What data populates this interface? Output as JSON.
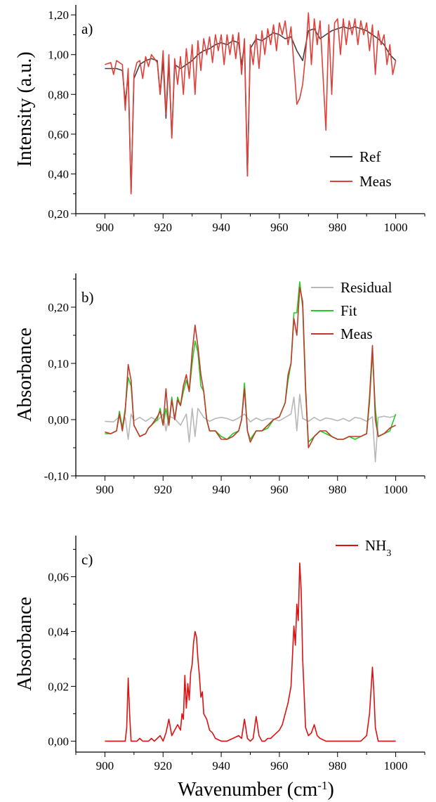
{
  "chart_data": [
    {
      "id": "a",
      "type": "line",
      "panel_label": "a)",
      "xlabel": "",
      "ylabel": "Intensity (a.u.)",
      "xlim": [
        890,
        1010
      ],
      "ylim": [
        0.2,
        1.25
      ],
      "x_ticks": [
        900,
        920,
        940,
        960,
        980,
        1000
      ],
      "x_tick_labels": [
        "900",
        "920",
        "940",
        "960",
        "980",
        "1000"
      ],
      "y_ticks": [
        0.2,
        0.4,
        0.6,
        0.8,
        1.0,
        1.2
      ],
      "y_tick_labels": [
        "0,20",
        "0,40",
        "0,60",
        "0,80",
        "1,00",
        "1,20"
      ],
      "legend_position": "bottom-right",
      "series": [
        {
          "name": "Ref",
          "color": "#404040",
          "x": [
            900,
            904,
            906,
            907,
            908,
            909,
            910,
            912,
            914,
            916,
            918,
            919,
            920,
            921,
            922,
            923,
            924,
            926,
            928,
            930,
            932,
            934,
            936,
            938,
            940,
            942,
            944,
            946,
            947,
            948,
            949,
            950,
            952,
            954,
            956,
            958,
            960,
            962,
            964,
            966,
            968,
            970,
            972,
            974,
            976,
            978,
            980,
            982,
            984,
            986,
            988,
            990,
            992,
            994,
            996,
            998,
            1000
          ],
          "y": [
            0.93,
            0.93,
            0.92,
            0.76,
            0.9,
            0.3,
            0.88,
            0.95,
            0.97,
            0.98,
            0.97,
            0.8,
            0.97,
            0.68,
            0.96,
            0.58,
            0.95,
            0.93,
            0.95,
            0.97,
            1.0,
            1.02,
            1.03,
            1.05,
            1.06,
            1.05,
            1.07,
            1.06,
            0.95,
            1.05,
            0.39,
            1.03,
            1.08,
            1.07,
            1.09,
            1.11,
            1.1,
            1.08,
            1.09,
            1.02,
            0.97,
            1.12,
            1.13,
            1.08,
            1.1,
            1.12,
            1.13,
            1.14,
            1.13,
            1.14,
            1.13,
            1.12,
            1.1,
            1.08,
            1.05,
            1.0,
            0.97
          ]
        },
        {
          "name": "Meas",
          "color": "#e0403a",
          "x": [
            900,
            902,
            903,
            904,
            906,
            907,
            908,
            909,
            910,
            911,
            912,
            913,
            914,
            915,
            916,
            918,
            919,
            920,
            921,
            922,
            923,
            924,
            925,
            926,
            927,
            928,
            929,
            930,
            931,
            932,
            933,
            934,
            935,
            936,
            937,
            938,
            939,
            940,
            941,
            942,
            943,
            944,
            945,
            946,
            947,
            948,
            949,
            950,
            951,
            952,
            953,
            954,
            955,
            956,
            957,
            958,
            959,
            960,
            961,
            962,
            963,
            964,
            965,
            966,
            967,
            968,
            969,
            970,
            971,
            972,
            973,
            974,
            975,
            976,
            977,
            978,
            979,
            980,
            981,
            982,
            983,
            984,
            985,
            986,
            987,
            988,
            989,
            990,
            991,
            992,
            993,
            994,
            995,
            996,
            997,
            998,
            999,
            1000
          ],
          "y": [
            0.95,
            0.96,
            0.9,
            0.97,
            0.95,
            0.72,
            0.93,
            0.3,
            0.9,
            0.96,
            0.97,
            0.88,
            0.99,
            0.94,
            1.0,
            0.96,
            0.8,
            1.02,
            0.7,
            1.0,
            0.58,
            0.98,
            0.85,
            0.99,
            0.8,
            1.03,
            0.88,
            1.05,
            0.8,
            1.07,
            0.92,
            1.08,
            1.0,
            1.09,
            0.96,
            1.1,
            1.02,
            1.1,
            0.95,
            1.1,
            1.0,
            1.1,
            0.98,
            1.11,
            0.9,
            1.08,
            0.39,
            1.05,
            0.95,
            1.1,
            0.93,
            1.12,
            1.0,
            1.13,
            1.05,
            1.15,
            1.02,
            1.16,
            1.1,
            1.17,
            1.05,
            1.14,
            0.95,
            0.75,
            0.78,
            0.85,
            1.0,
            1.21,
            0.95,
            1.18,
            1.05,
            1.17,
            0.9,
            0.62,
            1.15,
            0.8,
            1.16,
            1.18,
            1.0,
            1.18,
            1.05,
            1.17,
            1.1,
            1.18,
            1.05,
            1.17,
            1.1,
            1.16,
            1.02,
            1.15,
            0.9,
            1.12,
            1.05,
            1.1,
            0.95,
            1.05,
            0.9,
            0.97
          ]
        }
      ]
    },
    {
      "id": "b",
      "type": "line",
      "panel_label": "b)",
      "xlabel": "",
      "ylabel": "Absorbance",
      "xlim": [
        890,
        1010
      ],
      "ylim": [
        -0.1,
        0.26
      ],
      "x_ticks": [
        900,
        920,
        940,
        960,
        980,
        1000
      ],
      "x_tick_labels": [
        "900",
        "920",
        "940",
        "960",
        "980",
        "1000"
      ],
      "y_ticks": [
        -0.1,
        0.0,
        0.1,
        0.2
      ],
      "y_tick_labels": [
        "-0,10",
        "0,00",
        "0,10",
        "0,20"
      ],
      "legend_position": "top-right",
      "series": [
        {
          "name": "Residual",
          "color": "#b8b8b8",
          "x": [
            900,
            903,
            905,
            906,
            907,
            908,
            909,
            910,
            912,
            914,
            916,
            918,
            920,
            921,
            922,
            924,
            926,
            928,
            929,
            930,
            931,
            932,
            934,
            936,
            938,
            940,
            942,
            944,
            946,
            948,
            950,
            952,
            954,
            956,
            958,
            960,
            962,
            964,
            965,
            966,
            967,
            968,
            970,
            972,
            974,
            976,
            978,
            980,
            982,
            984,
            986,
            988,
            990,
            992,
            993,
            994,
            996,
            998,
            1000
          ],
          "y": [
            -0.003,
            -0.004,
            0.005,
            -0.01,
            0.004,
            -0.035,
            0.01,
            -0.002,
            0.004,
            -0.003,
            0.004,
            -0.002,
            0.01,
            -0.02,
            0.006,
            0.002,
            -0.01,
            0.01,
            -0.04,
            0.02,
            -0.03,
            0.02,
            0.004,
            -0.003,
            0.002,
            0.004,
            0.002,
            -0.002,
            0.003,
            0.01,
            -0.004,
            0.003,
            -0.002,
            0.002,
            0.001,
            -0.002,
            0.004,
            0.01,
            0.04,
            -0.02,
            0.045,
            0.002,
            -0.003,
            0.004,
            -0.002,
            0.003,
            0.001,
            -0.002,
            0.002,
            -0.003,
            0.004,
            0.002,
            -0.003,
            0.005,
            -0.075,
            0.004,
            0.006,
            0.004,
            0.007
          ]
        },
        {
          "name": "Fit",
          "color": "#22cc22",
          "x": [
            900,
            902,
            904,
            905,
            906,
            907,
            908,
            909,
            910,
            912,
            914,
            915,
            916,
            918,
            919,
            920,
            921,
            922,
            923,
            924,
            925,
            926,
            927,
            928,
            929,
            930,
            931,
            932,
            933,
            934,
            935,
            936,
            938,
            940,
            942,
            944,
            946,
            947,
            948,
            949,
            950,
            952,
            954,
            956,
            958,
            960,
            962,
            963,
            964,
            965,
            966,
            967,
            968,
            969,
            970,
            972,
            974,
            976,
            978,
            980,
            982,
            984,
            986,
            988,
            990,
            991,
            992,
            993,
            994,
            996,
            998,
            1000
          ],
          "y": [
            -0.025,
            -0.025,
            -0.02,
            0.015,
            -0.015,
            0.02,
            0.075,
            0.06,
            -0.01,
            -0.03,
            -0.025,
            -0.015,
            -0.01,
            0.0,
            0.02,
            -0.01,
            0.02,
            -0.01,
            0.04,
            0.0,
            0.04,
            0.025,
            0.05,
            0.07,
            0.05,
            0.1,
            0.14,
            0.12,
            0.06,
            0.05,
            0.0,
            -0.02,
            -0.02,
            -0.03,
            -0.035,
            -0.025,
            -0.02,
            0.0,
            0.065,
            -0.02,
            -0.035,
            -0.02,
            -0.02,
            -0.015,
            0.0,
            0.005,
            0.03,
            0.07,
            0.1,
            0.19,
            0.19,
            0.245,
            0.2,
            0.05,
            -0.04,
            -0.03,
            -0.02,
            -0.025,
            -0.03,
            -0.035,
            -0.035,
            -0.03,
            -0.035,
            -0.03,
            -0.025,
            0.03,
            0.12,
            0.02,
            -0.03,
            -0.025,
            -0.02,
            0.01
          ]
        },
        {
          "name": "Meas",
          "color": "#c0392b",
          "x": [
            900,
            902,
            904,
            905,
            906,
            907,
            908,
            909,
            910,
            912,
            914,
            915,
            916,
            918,
            919,
            920,
            921,
            922,
            923,
            924,
            925,
            926,
            927,
            928,
            929,
            930,
            931,
            932,
            933,
            934,
            935,
            936,
            938,
            940,
            942,
            944,
            946,
            947,
            948,
            949,
            950,
            952,
            954,
            956,
            958,
            960,
            962,
            963,
            964,
            965,
            966,
            967,
            968,
            969,
            970,
            972,
            974,
            976,
            978,
            980,
            982,
            984,
            986,
            988,
            990,
            991,
            992,
            993,
            994,
            996,
            998,
            1000
          ],
          "y": [
            -0.022,
            -0.025,
            -0.02,
            0.01,
            -0.02,
            0.015,
            0.098,
            0.07,
            -0.01,
            -0.03,
            -0.025,
            -0.015,
            -0.01,
            0.005,
            0.015,
            -0.01,
            0.055,
            -0.01,
            0.035,
            0.0,
            0.035,
            0.025,
            0.06,
            0.08,
            0.05,
            0.12,
            0.168,
            0.13,
            0.08,
            0.05,
            0.0,
            -0.02,
            -0.02,
            -0.035,
            -0.035,
            -0.03,
            -0.02,
            0.0,
            0.055,
            -0.02,
            -0.04,
            -0.02,
            -0.02,
            -0.01,
            0.0,
            0.005,
            0.03,
            0.08,
            0.1,
            0.18,
            0.15,
            0.235,
            0.21,
            0.06,
            -0.05,
            -0.03,
            -0.02,
            -0.02,
            -0.03,
            -0.035,
            -0.035,
            -0.03,
            -0.03,
            -0.03,
            -0.025,
            0.04,
            0.132,
            0.0,
            -0.03,
            -0.025,
            -0.015,
            -0.01
          ]
        }
      ]
    },
    {
      "id": "c",
      "type": "line",
      "panel_label": "c)",
      "xlabel": "Wavenumber (cm",
      "xlabel_sup": "-1",
      "xlabel_end": ")",
      "ylabel": "Absorbance",
      "xlim": [
        890,
        1010
      ],
      "ylim": [
        -0.004,
        0.075
      ],
      "x_ticks": [
        900,
        920,
        940,
        960,
        980,
        1000
      ],
      "x_tick_labels": [
        "900",
        "920",
        "940",
        "960",
        "980",
        "1000"
      ],
      "y_ticks": [
        0.0,
        0.02,
        0.04,
        0.06
      ],
      "y_tick_labels": [
        "0,00",
        "0,02",
        "0,04",
        "0,06"
      ],
      "legend_position": "top-right",
      "series": [
        {
          "name": "NH",
          "name_sub": "3",
          "color": "#dd1111",
          "x": [
            900,
            904,
            906,
            907,
            907.5,
            908,
            908.5,
            909,
            910,
            911,
            912,
            913,
            914,
            915,
            916,
            917,
            918,
            919,
            920,
            921,
            922,
            923,
            924,
            925,
            926,
            926.5,
            927,
            927.5,
            928,
            928.5,
            929,
            929.5,
            930,
            930.5,
            931,
            931.5,
            932,
            932.5,
            933,
            933.5,
            934,
            935,
            936,
            937,
            938,
            940,
            942,
            944,
            946,
            947,
            948,
            949,
            950,
            951,
            952,
            953,
            954,
            955,
            956,
            957,
            958,
            959,
            960,
            961,
            962,
            963,
            964,
            965,
            965.5,
            966,
            966.5,
            967,
            967.5,
            968,
            969,
            970,
            971,
            972,
            973,
            974,
            976,
            978,
            980,
            982,
            984,
            986,
            988,
            990,
            991,
            992,
            992.5,
            993,
            994,
            996,
            998,
            1000
          ],
          "y": [
            0.0,
            0.0,
            0.0,
            0.0,
            0.005,
            0.023,
            0.01,
            0.0,
            0.0,
            0.0,
            0.001,
            0.0,
            0.0,
            0.0,
            0.001,
            0.0,
            0.001,
            0.002,
            0.0,
            0.003,
            0.008,
            0.002,
            0.004,
            0.006,
            0.004,
            0.01,
            0.008,
            0.024,
            0.012,
            0.021,
            0.015,
            0.025,
            0.028,
            0.036,
            0.04,
            0.038,
            0.03,
            0.024,
            0.016,
            0.018,
            0.01,
            0.008,
            0.004,
            0.003,
            0.001,
            0.0,
            0.0,
            0.001,
            0.002,
            0.001,
            0.008,
            0.001,
            0.0,
            0.001,
            0.009,
            0.002,
            0.0,
            0.0,
            0.001,
            0.001,
            0.002,
            0.003,
            0.004,
            0.006,
            0.01,
            0.014,
            0.02,
            0.042,
            0.035,
            0.05,
            0.044,
            0.065,
            0.055,
            0.03,
            0.005,
            0.002,
            0.003,
            0.006,
            0.002,
            0.001,
            0.0,
            0.0,
            0.0,
            0.0,
            0.0,
            0.0,
            0.0,
            0.002,
            0.01,
            0.027,
            0.018,
            0.005,
            0.0,
            0.0,
            0.0,
            0.0
          ]
        }
      ]
    }
  ]
}
